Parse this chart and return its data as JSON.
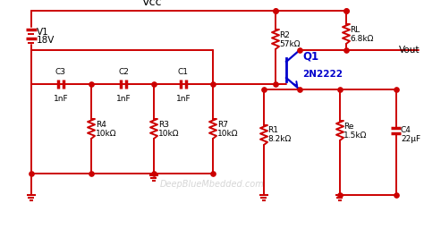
{
  "bg_color": "#ffffff",
  "wire_color": "#cc0000",
  "text_color": "#000000",
  "blue_color": "#0000cc",
  "component_color": "#cc0000",
  "watermark": "DeepBlueMbedded.com",
  "vcc_label": "Vcc",
  "vout_label": "Vout",
  "v1_label": "V1",
  "v1_val": "18V",
  "rl_label": "RL",
  "rl_val": "6.8kΩ",
  "r2_label": "R2",
  "r2_val": "57kΩ",
  "r1_label": "R1",
  "r1_val": "8.2kΩ",
  "re_label": "Re",
  "re_val": "1.5kΩ",
  "r4_label": "R4",
  "r4_val": "10kΩ",
  "r3_label": "R3",
  "r3_val": "10kΩ",
  "r7_label": "R7",
  "r7_val": "10kΩ",
  "c3_label": "C3",
  "c3_val": "1nF",
  "c2_label": "C2",
  "c2_val": "1nF",
  "c1_label": "C1",
  "c1_val": "1nF",
  "c4_label": "C4",
  "c4_val": "22μF",
  "q1_label": "Q1",
  "transistor_label": "2N2222"
}
